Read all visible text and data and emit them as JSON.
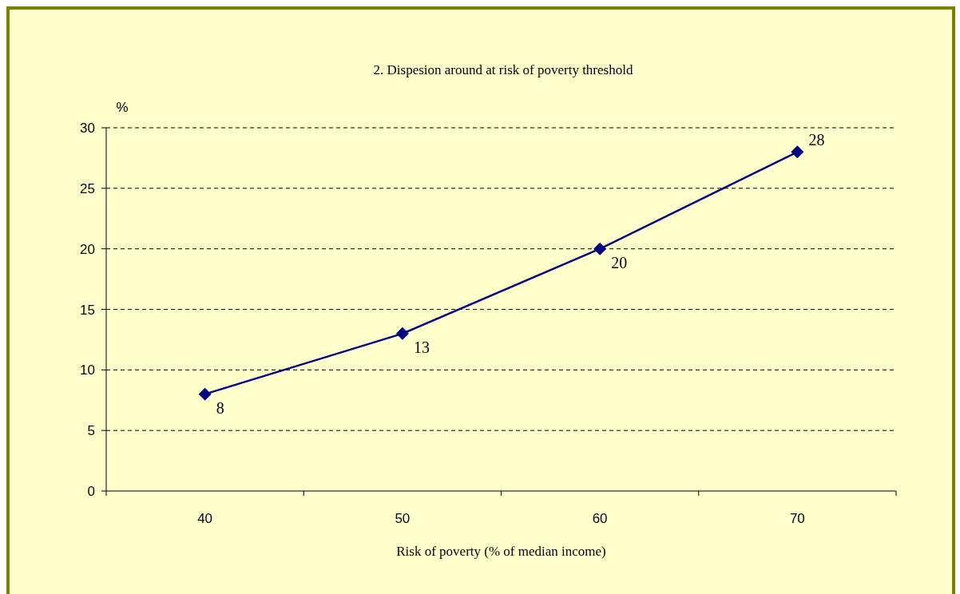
{
  "chart_data": {
    "type": "line",
    "title": "2. Dispesion around at risk of poverty threshold",
    "xlabel": "Risk of poverty (% of median income)",
    "ylabel": "%",
    "categories": [
      "40",
      "50",
      "60",
      "70"
    ],
    "series": [
      {
        "color": "#000080",
        "values": [
          8,
          13,
          20,
          28
        ]
      }
    ],
    "ylim": [
      0,
      30
    ],
    "yticks": [
      0,
      5,
      10,
      15,
      20,
      25,
      30
    ],
    "grid": "y",
    "marker": "diamond",
    "line_style": "solid",
    "data_labels": true
  }
}
